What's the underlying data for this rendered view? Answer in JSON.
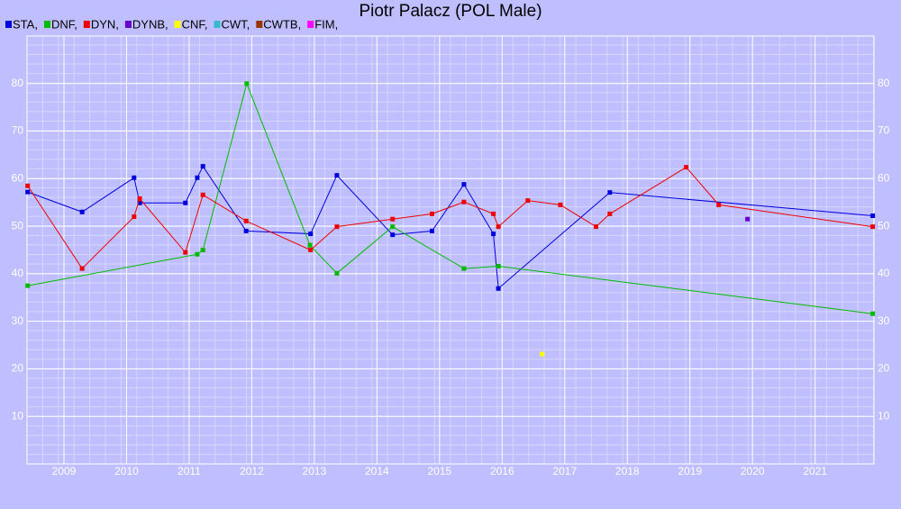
{
  "chart_data": {
    "type": "line",
    "title": "Piotr Palacz (POL Male)",
    "xlim": [
      2008.41,
      2021.94
    ],
    "xticks": [
      2009,
      2010,
      2011,
      2012,
      2013,
      2014,
      2015,
      2016,
      2017,
      2018,
      2019,
      2020,
      2021
    ],
    "ylim": [
      0,
      90
    ],
    "yticks": [
      10,
      20,
      30,
      40,
      50,
      60,
      70,
      80
    ],
    "grid": true,
    "series": [
      {
        "name": "STA,",
        "color": "#0000dd",
        "x": [
          2008.42,
          2009.29,
          2010.12,
          2010.21,
          2010.94,
          2011.13,
          2011.22,
          2011.91,
          2012.94,
          2013.36,
          2014.25,
          2014.88,
          2015.39,
          2015.86,
          2015.94,
          2017.72,
          2021.92
        ],
        "values": [
          57.2,
          53.0,
          60.2,
          54.9,
          54.9,
          60.2,
          62.6,
          49.0,
          48.4,
          60.7,
          48.2,
          49.0,
          58.8,
          48.4,
          36.9,
          57.1,
          52.2
        ]
      },
      {
        "name": "DNF,",
        "color": "#00bb00",
        "x": [
          2008.42,
          2011.13,
          2011.22,
          2011.92,
          2012.93,
          2013.36,
          2014.25,
          2015.39,
          2015.94,
          2021.92
        ],
        "values": [
          37.5,
          44.1,
          45.0,
          80,
          46.0,
          40.1,
          49.9,
          41.1,
          41.6,
          31.6
        ]
      },
      {
        "name": "DYN,",
        "color": "#ee0000",
        "x": [
          2008.42,
          2009.29,
          2010.12,
          2010.21,
          2010.94,
          2011.22,
          2011.91,
          2012.94,
          2013.36,
          2014.25,
          2014.88,
          2015.39,
          2015.86,
          2015.94,
          2016.41,
          2016.93,
          2017.5,
          2017.72,
          2018.94,
          2019.46,
          2021.92
        ],
        "values": [
          58.5,
          41.1,
          52.0,
          55.8,
          44.5,
          56.6,
          51.1,
          45.0,
          49.9,
          51.5,
          52.6,
          55.1,
          52.6,
          49.9,
          55.4,
          54.5,
          49.9,
          52.6,
          62.4,
          54.5,
          49.9
        ]
      },
      {
        "name": "DYNB,",
        "color": "#6600cc",
        "x": [
          2019.92
        ],
        "values": [
          51.5
        ]
      },
      {
        "name": "CNF,",
        "color": "#ffff00",
        "x": [
          2016.64
        ],
        "values": [
          23.1
        ]
      },
      {
        "name": "CWT,",
        "color": "#33bbcc",
        "x": [],
        "values": []
      },
      {
        "name": "CWTB,",
        "color": "#993300",
        "x": [],
        "values": []
      },
      {
        "name": "FIM,",
        "color": "#ff00ff",
        "x": [],
        "values": []
      }
    ]
  }
}
